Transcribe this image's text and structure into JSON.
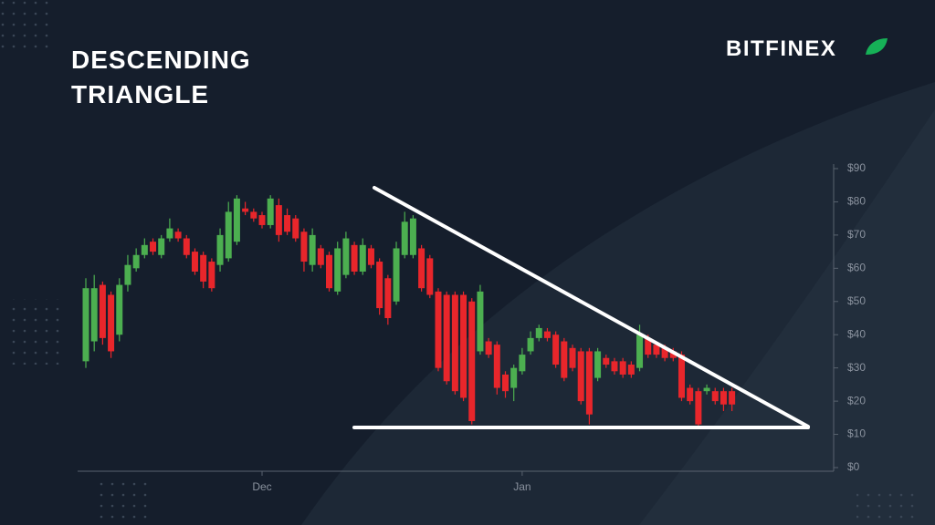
{
  "chart_data": {
    "type": "candlestick",
    "title": "DESCENDING TRIANGLE",
    "logo": "BITFINEX",
    "categories": [
      null,
      null,
      null,
      null,
      null,
      null,
      null,
      null,
      null,
      null,
      null,
      null,
      null,
      null,
      null,
      null,
      null,
      null,
      null,
      null,
      null,
      "Dec",
      null,
      null,
      null,
      null,
      null,
      null,
      null,
      null,
      null,
      null,
      null,
      null,
      null,
      null,
      null,
      null,
      null,
      null,
      null,
      null,
      null,
      null,
      null,
      null,
      null,
      null,
      null,
      null,
      null,
      null,
      "Jan",
      null,
      null,
      null,
      null,
      null,
      null,
      null,
      null,
      null,
      null,
      null,
      null,
      null,
      null,
      null,
      null,
      null,
      null,
      null,
      null,
      null,
      null,
      null,
      null,
      null
    ],
    "open": [
      32,
      38,
      55,
      52,
      40,
      55,
      60,
      64,
      68,
      64,
      69,
      71,
      69,
      65,
      64,
      62,
      61,
      63,
      68,
      78,
      77,
      76,
      73,
      79,
      76,
      75,
      71,
      61,
      66,
      64,
      53,
      58,
      67,
      59,
      66,
      62,
      57,
      50,
      64,
      64,
      66,
      63,
      53,
      52,
      52,
      52,
      50,
      35,
      38,
      37,
      28,
      24,
      29,
      35,
      39,
      41,
      40,
      38,
      36,
      35,
      35,
      27,
      33,
      32,
      32,
      31,
      30,
      39,
      37,
      36,
      35,
      34,
      24,
      23,
      23,
      23,
      23,
      23
    ],
    "high": [
      57,
      58,
      56,
      53,
      57,
      64,
      66,
      69,
      69,
      70,
      75,
      72,
      70,
      66,
      65,
      63,
      72,
      80,
      82,
      80,
      78,
      77,
      82,
      81,
      78,
      76,
      72,
      72,
      67,
      65,
      68,
      71,
      68,
      69,
      67,
      63,
      58,
      68,
      77,
      76,
      67,
      64,
      54,
      53,
      53,
      53,
      51,
      55,
      39,
      38,
      29,
      31,
      36,
      41,
      43,
      42,
      41,
      39,
      37,
      36,
      36,
      36,
      34,
      33,
      33,
      32,
      43,
      40,
      38,
      37,
      36,
      35,
      25,
      24,
      25,
      24,
      24,
      24
    ],
    "low": [
      30,
      35,
      37,
      33,
      38,
      53,
      59,
      63,
      64,
      63,
      68,
      68,
      63,
      58,
      54,
      53,
      59,
      62,
      67,
      76,
      74,
      72,
      72,
      68,
      70,
      68,
      59,
      59,
      60,
      53,
      52,
      57,
      58,
      58,
      60,
      46,
      43,
      49,
      63,
      63,
      53,
      51,
      29,
      25,
      22,
      20,
      13,
      34,
      33,
      22,
      21,
      20,
      28,
      34,
      38,
      38,
      30,
      26,
      29,
      19,
      13,
      26,
      30,
      28,
      27,
      27,
      29,
      33,
      33,
      32,
      32,
      20,
      19,
      12,
      22,
      19,
      17,
      17
    ],
    "close": [
      54,
      54,
      39,
      35,
      55,
      61,
      64,
      67,
      65,
      69,
      72,
      69,
      64,
      59,
      56,
      54,
      70,
      77,
      81,
      77,
      75,
      73,
      81,
      70,
      71,
      69,
      62,
      70,
      61,
      54,
      66,
      69,
      59,
      67,
      61,
      48,
      45,
      66,
      74,
      75,
      54,
      52,
      30,
      26,
      23,
      21,
      14,
      53,
      34,
      24,
      23,
      30,
      34,
      39,
      42,
      39,
      31,
      27,
      30,
      20,
      16,
      35,
      31,
      29,
      28,
      28,
      40,
      34,
      34,
      33,
      33,
      21,
      20,
      13,
      24,
      20,
      19,
      19
    ],
    "up_color": "#4caf50",
    "down_color": "#e8262b",
    "ylim": [
      0,
      90
    ],
    "yticks": [
      {
        "value": 0,
        "label": "$0"
      },
      {
        "value": 10,
        "label": "$10"
      },
      {
        "value": 20,
        "label": "$20"
      },
      {
        "value": 30,
        "label": "$30"
      },
      {
        "value": 40,
        "label": "$40"
      },
      {
        "value": 50,
        "label": "$50"
      },
      {
        "value": 60,
        "label": "$60"
      },
      {
        "value": 70,
        "label": "$70"
      },
      {
        "value": 80,
        "label": "$80"
      },
      {
        "value": 90,
        "label": "$90"
      }
    ]
  }
}
